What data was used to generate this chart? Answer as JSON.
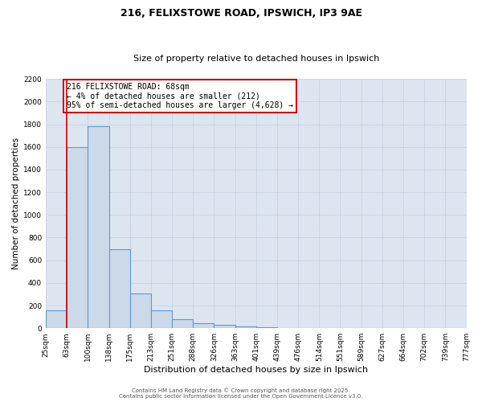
{
  "title_line1": "216, FELIXSTOWE ROAD, IPSWICH, IP3 9AE",
  "title_line2": "Size of property relative to detached houses in Ipswich",
  "xlabel": "Distribution of detached houses by size in Ipswich",
  "ylabel": "Number of detached properties",
  "bar_values": [
    160,
    1600,
    1780,
    700,
    310,
    160,
    80,
    45,
    30,
    15,
    10,
    5,
    5,
    0,
    0,
    0,
    0,
    0,
    0,
    0
  ],
  "bar_labels": [
    "25sqm",
    "63sqm",
    "100sqm",
    "138sqm",
    "175sqm",
    "213sqm",
    "251sqm",
    "288sqm",
    "326sqm",
    "363sqm",
    "401sqm",
    "439sqm",
    "476sqm",
    "514sqm",
    "551sqm",
    "589sqm",
    "627sqm",
    "664sqm",
    "702sqm",
    "739sqm",
    "777sqm"
  ],
  "bar_color": "#ccd9e8",
  "bar_edge_color": "#5b9bd5",
  "bar_edge_width": 0.8,
  "red_line_x": 1,
  "red_line_color": "#cc0000",
  "ylim": [
    0,
    2200
  ],
  "yticks": [
    0,
    200,
    400,
    600,
    800,
    1000,
    1200,
    1400,
    1600,
    1800,
    2000,
    2200
  ],
  "annotation_title": "216 FELIXSTOWE ROAD: 68sqm",
  "annotation_line2": "← 4% of detached houses are smaller (212)",
  "annotation_line3": "95% of semi-detached houses are larger (4,628) →",
  "annotation_box_color": "#ffffff",
  "annotation_border_color": "#cc0000",
  "grid_color": "#c8d4e4",
  "background_color": "#dde6f0",
  "footer_line1": "Contains HM Land Registry data © Crown copyright and database right 2025.",
  "footer_line2": "Contains public sector information licensed under the Open Government Licence v3.0.",
  "title_fontsize": 9,
  "subtitle_fontsize": 8,
  "xlabel_fontsize": 8,
  "ylabel_fontsize": 7.5,
  "tick_fontsize": 6.5,
  "annotation_fontsize": 7,
  "footer_fontsize": 5
}
